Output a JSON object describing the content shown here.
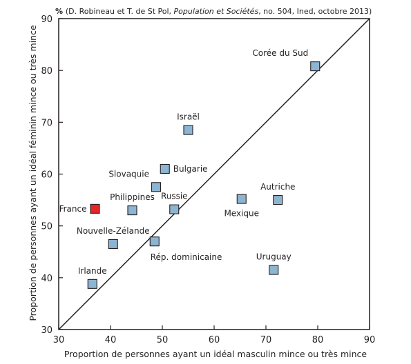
{
  "chart_data": {
    "type": "scatter",
    "title": "",
    "source_note_prefix": "% ",
    "source_note_a": "(D. Robineau et T. de St Pol, ",
    "source_note_italic": "Population et Sociétés",
    "source_note_b": ", no. 504, Ined, octobre 2013)",
    "xlabel": "Proportion de personnes ayant un idéal masculin mince ou très mince",
    "ylabel": "Proportion de personnes ayant un idéal féminin mince ou très mince",
    "xlim": [
      30,
      90
    ],
    "ylim": [
      30,
      90
    ],
    "x_ticks": [
      30,
      40,
      50,
      60,
      70,
      80,
      90
    ],
    "y_ticks": [
      30,
      40,
      50,
      60,
      70,
      80,
      90
    ],
    "reference_line": "y = x",
    "grid": false,
    "points": [
      {
        "label": "Corée du Sud",
        "x": 79.5,
        "y": 80.8,
        "color": "#8db4d1",
        "label_pos": "above-left"
      },
      {
        "label": "Israël",
        "x": 55.0,
        "y": 68.5,
        "color": "#8db4d1",
        "label_pos": "above"
      },
      {
        "label": "Bulgarie",
        "x": 50.5,
        "y": 61.0,
        "color": "#8db4d1",
        "label_pos": "right"
      },
      {
        "label": "Slovaquie",
        "x": 48.8,
        "y": 57.5,
        "color": "#8db4d1",
        "label_pos": "above-left"
      },
      {
        "label": "Philippines",
        "x": 44.2,
        "y": 53.0,
        "color": "#8db4d1",
        "label_pos": "above"
      },
      {
        "label": "Russie",
        "x": 52.3,
        "y": 53.2,
        "color": "#8db4d1",
        "label_pos": "above"
      },
      {
        "label": "France",
        "x": 37.0,
        "y": 53.3,
        "color": "#e52629",
        "label_pos": "left"
      },
      {
        "label": "Mexique",
        "x": 65.3,
        "y": 55.2,
        "color": "#8db4d1",
        "label_pos": "below"
      },
      {
        "label": "Autriche",
        "x": 72.3,
        "y": 55.0,
        "color": "#8db4d1",
        "label_pos": "above"
      },
      {
        "label": "Nouvelle-Zélande",
        "x": 40.5,
        "y": 46.5,
        "color": "#8db4d1",
        "label_pos": "above"
      },
      {
        "label": "Rép. dominicaine",
        "x": 48.5,
        "y": 47.0,
        "color": "#8db4d1",
        "label_pos": "below-right"
      },
      {
        "label": "Uruguay",
        "x": 71.5,
        "y": 41.5,
        "color": "#8db4d1",
        "label_pos": "above"
      },
      {
        "label": "Irlande",
        "x": 36.5,
        "y": 38.8,
        "color": "#8db4d1",
        "label_pos": "above"
      }
    ],
    "marker_stroke": "#231f20"
  }
}
